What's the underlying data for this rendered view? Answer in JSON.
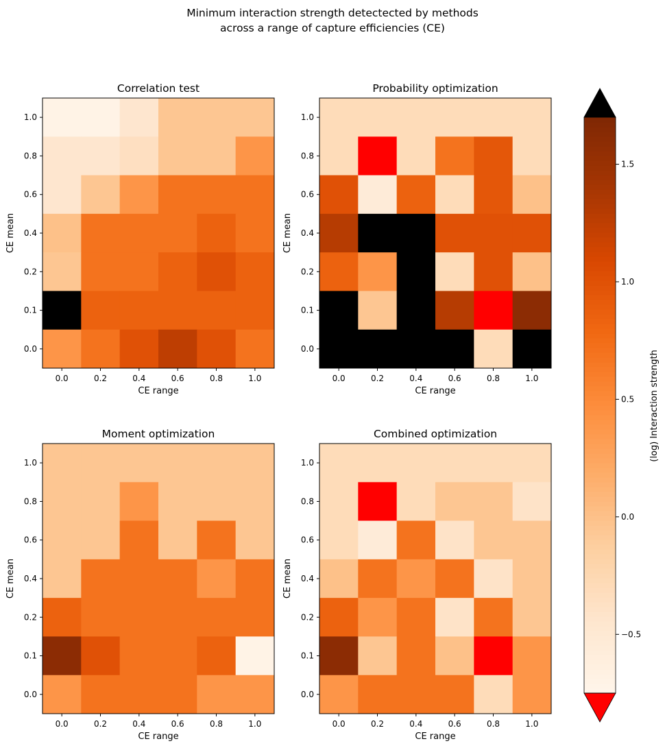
{
  "figure": {
    "title_line1": "Minimum interaction strength detectected by methods",
    "title_line2": "across a range of capture efficiencies (CE)"
  },
  "colorbar": {
    "label": "(log) Interaction strength",
    "vmin": -0.75,
    "vmax": 1.7,
    "ticks": [
      -0.5,
      0.0,
      0.5,
      1.0,
      1.5
    ],
    "tick_labels": [
      "−0.5",
      "0.0",
      "0.5",
      "1.0",
      "1.5"
    ],
    "colormap": "Oranges",
    "over_color": "#000000",
    "under_color": "#ff0000"
  },
  "chart_data": [
    {
      "type": "heatmap",
      "title": "Correlation test",
      "xlabel": "CE range",
      "ylabel": "CE mean",
      "x_ticks": [
        "0.0",
        "0.2",
        "0.4",
        "0.6",
        "0.8",
        "1.0"
      ],
      "y_ticks": [
        "1.0",
        "0.8",
        "0.6",
        "0.4",
        "0.2",
        "0.1",
        "0.0"
      ],
      "rows": [
        [
          -0.7,
          -0.7,
          -0.45,
          -0.05,
          -0.05,
          -0.05
        ],
        [
          -0.45,
          -0.45,
          -0.35,
          -0.05,
          -0.05,
          0.4
        ],
        [
          -0.45,
          -0.05,
          0.4,
          0.7,
          0.7,
          0.7
        ],
        [
          0.0,
          0.7,
          0.7,
          0.7,
          0.85,
          0.7
        ],
        [
          -0.05,
          0.7,
          0.7,
          0.85,
          1.0,
          0.85
        ],
        [
          "over",
          0.85,
          0.85,
          0.85,
          0.85,
          0.85
        ],
        [
          0.4,
          0.7,
          1.0,
          1.25,
          1.0,
          0.7
        ]
      ]
    },
    {
      "type": "heatmap",
      "title": "Probability optimization",
      "xlabel": "CE range",
      "ylabel": "CE mean",
      "x_ticks": [
        "0.0",
        "0.2",
        "0.4",
        "0.6",
        "0.8",
        "1.0"
      ],
      "y_ticks": [
        "1.0",
        "0.8",
        "0.6",
        "0.4",
        "0.2",
        "0.1",
        "0.0"
      ],
      "rows": [
        [
          -0.3,
          -0.3,
          -0.3,
          -0.3,
          -0.3,
          -0.3
        ],
        [
          -0.3,
          "under",
          -0.3,
          0.7,
          0.95,
          -0.3
        ],
        [
          1.0,
          -0.55,
          0.85,
          -0.3,
          0.95,
          0.0
        ],
        [
          1.3,
          "over",
          "over",
          1.0,
          1.0,
          1.0
        ],
        [
          0.85,
          0.4,
          "over",
          -0.3,
          1.0,
          0.0
        ],
        [
          "over",
          -0.05,
          "over",
          1.3,
          "under",
          1.6
        ],
        [
          "over",
          "over",
          "over",
          "over",
          -0.3,
          "over"
        ]
      ]
    },
    {
      "type": "heatmap",
      "title": "Moment optimization",
      "xlabel": "CE range",
      "ylabel": "CE mean",
      "x_ticks": [
        "0.0",
        "0.2",
        "0.4",
        "0.6",
        "0.8",
        "1.0"
      ],
      "y_ticks": [
        "1.0",
        "0.8",
        "0.6",
        "0.4",
        "0.2",
        "0.1",
        "0.0"
      ],
      "rows": [
        [
          -0.05,
          -0.05,
          -0.05,
          -0.05,
          -0.05,
          -0.05
        ],
        [
          -0.05,
          -0.05,
          0.4,
          -0.05,
          -0.05,
          -0.05
        ],
        [
          -0.05,
          -0.05,
          0.7,
          -0.05,
          0.7,
          -0.05
        ],
        [
          -0.05,
          0.7,
          0.7,
          0.7,
          0.4,
          0.7
        ],
        [
          0.85,
          0.7,
          0.7,
          0.7,
          0.7,
          0.7
        ],
        [
          1.6,
          1.0,
          0.7,
          0.7,
          0.85,
          -0.7
        ],
        [
          0.4,
          0.7,
          0.7,
          0.7,
          0.4,
          0.4
        ]
      ]
    },
    {
      "type": "heatmap",
      "title": "Combined optimization",
      "xlabel": "CE range",
      "ylabel": "CE mean",
      "x_ticks": [
        "0.0",
        "0.2",
        "0.4",
        "0.6",
        "0.8",
        "1.0"
      ],
      "y_ticks": [
        "1.0",
        "0.8",
        "0.6",
        "0.4",
        "0.2",
        "0.1",
        "0.0"
      ],
      "rows": [
        [
          -0.3,
          -0.3,
          -0.3,
          -0.3,
          -0.3,
          -0.3
        ],
        [
          -0.3,
          "under",
          -0.3,
          -0.05,
          -0.05,
          -0.4
        ],
        [
          -0.3,
          -0.55,
          0.7,
          -0.4,
          -0.05,
          -0.05
        ],
        [
          0.0,
          0.7,
          0.4,
          0.7,
          -0.4,
          -0.05
        ],
        [
          0.85,
          0.4,
          0.7,
          -0.4,
          0.7,
          -0.05
        ],
        [
          1.6,
          -0.05,
          0.7,
          0.0,
          "under",
          0.4
        ],
        [
          0.4,
          0.7,
          0.7,
          0.7,
          -0.3,
          0.4
        ]
      ]
    }
  ]
}
